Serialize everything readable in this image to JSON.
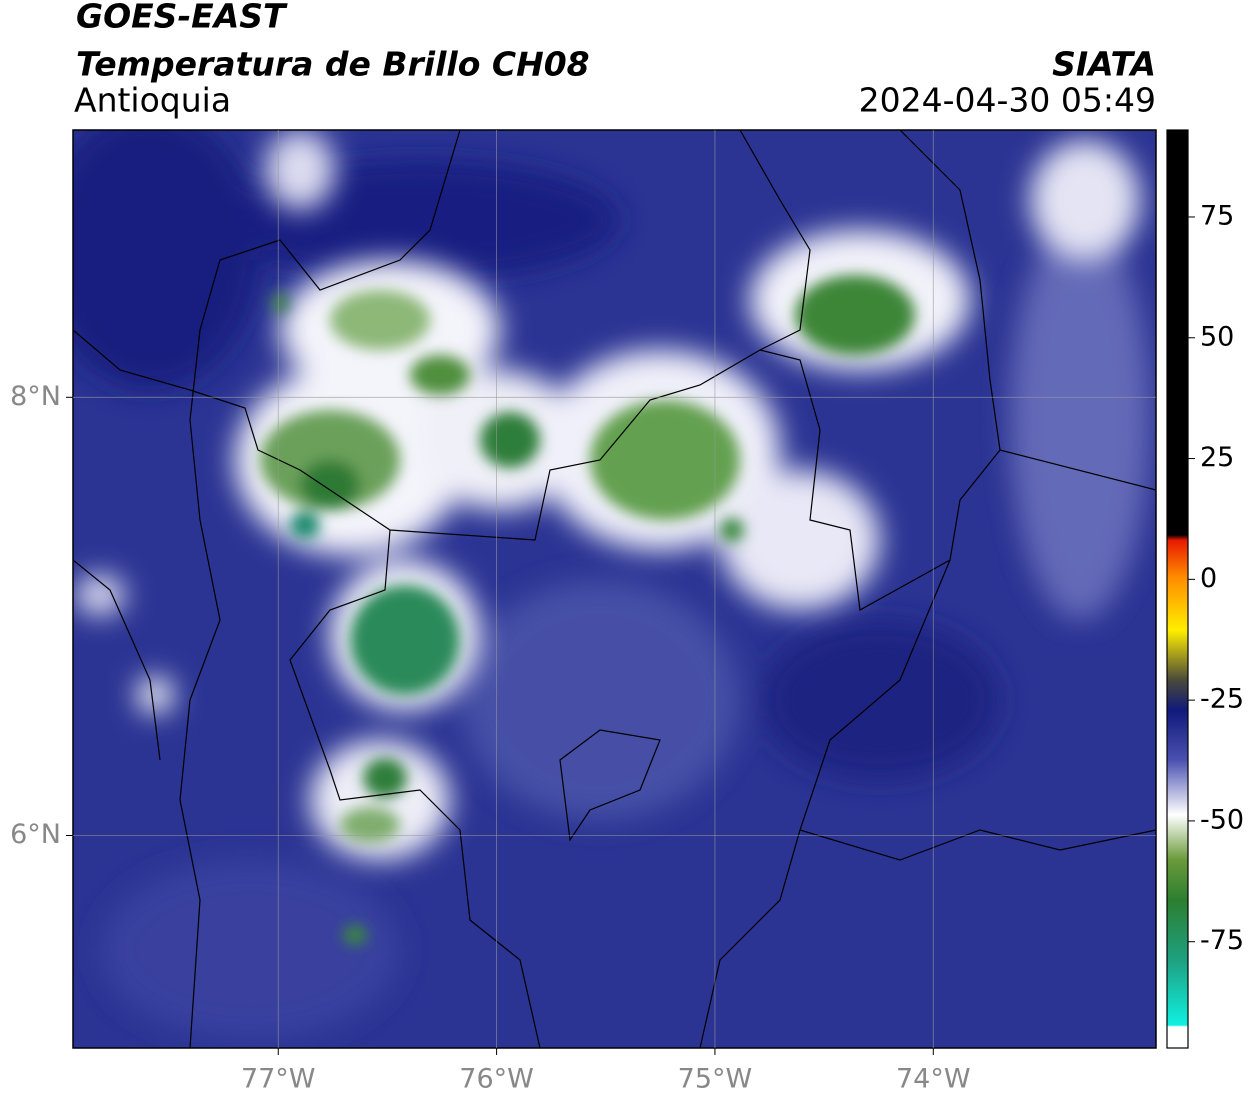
{
  "header": {
    "title": "GOES-EAST",
    "subtitle": "Temperatura de Brillo CH08",
    "region": "Antioquia",
    "source": "SIATA",
    "datetime": "2024-04-30 05:49"
  },
  "map": {
    "xlim": [
      -77.94,
      -72.98
    ],
    "ylim": [
      5.03,
      9.22
    ],
    "xticks": [
      {
        "value": -77,
        "label": "77°W"
      },
      {
        "value": -76,
        "label": "76°W"
      },
      {
        "value": -75,
        "label": "75°W"
      },
      {
        "value": -74,
        "label": "74°W"
      }
    ],
    "yticks": [
      {
        "value": 8,
        "label": "8°N"
      },
      {
        "value": 6,
        "label": "6°N"
      }
    ],
    "grid": true
  },
  "colorbar": {
    "lim": [
      -97,
      93
    ],
    "ticks": [
      75,
      50,
      25,
      0,
      -25,
      -50,
      -75
    ]
  }
}
